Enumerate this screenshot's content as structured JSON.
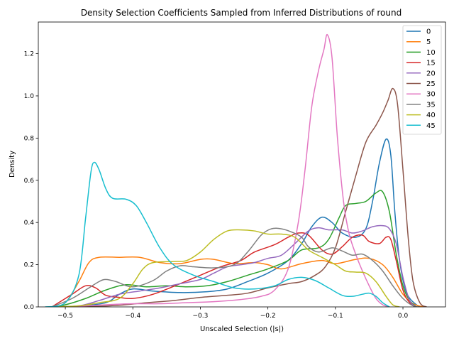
{
  "chart_data": {
    "type": "line",
    "title": "Density Selection Coefficients Sampled from Inferred Distributions of round",
    "xlabel": "Unscaled Selection (|s|)",
    "ylabel": "Density",
    "xlim": [
      -0.54,
      0.063
    ],
    "ylim": [
      0,
      1.35
    ],
    "xticks": [
      -0.5,
      -0.4,
      -0.3,
      -0.2,
      -0.1,
      0.0
    ],
    "xtick_labels": [
      "−0.5",
      "−0.4",
      "−0.3",
      "−0.2",
      "−0.1",
      "0.0"
    ],
    "yticks": [
      0.0,
      0.2,
      0.4,
      0.6,
      0.8,
      1.0,
      1.2
    ],
    "ytick_labels": [
      "0.0",
      "0.2",
      "0.4",
      "0.6",
      "0.8",
      "1.0",
      "1.2"
    ],
    "grid": false,
    "legend_position": "top-right",
    "series": [
      {
        "name": "0",
        "color": "#1f77b4",
        "points": [
          [
            -0.52,
            0
          ],
          [
            -0.48,
            0.004
          ],
          [
            -0.44,
            0.02
          ],
          [
            -0.42,
            0.06
          ],
          [
            -0.4,
            0.085
          ],
          [
            -0.37,
            0.075
          ],
          [
            -0.33,
            0.068
          ],
          [
            -0.29,
            0.072
          ],
          [
            -0.26,
            0.085
          ],
          [
            -0.23,
            0.12
          ],
          [
            -0.2,
            0.16
          ],
          [
            -0.17,
            0.22
          ],
          [
            -0.15,
            0.3
          ],
          [
            -0.135,
            0.38
          ],
          [
            -0.12,
            0.425
          ],
          [
            -0.105,
            0.4
          ],
          [
            -0.09,
            0.35
          ],
          [
            -0.07,
            0.33
          ],
          [
            -0.055,
            0.37
          ],
          [
            -0.045,
            0.5
          ],
          [
            -0.035,
            0.68
          ],
          [
            -0.025,
            0.795
          ],
          [
            -0.018,
            0.72
          ],
          [
            -0.012,
            0.45
          ],
          [
            -0.005,
            0.22
          ],
          [
            0.005,
            0.07
          ],
          [
            0.02,
            0.01
          ],
          [
            0.03,
            0
          ]
        ]
      },
      {
        "name": "5",
        "color": "#ff7f0e",
        "points": [
          [
            -0.52,
            0
          ],
          [
            -0.5,
            0.02
          ],
          [
            -0.48,
            0.12
          ],
          [
            -0.465,
            0.21
          ],
          [
            -0.45,
            0.235
          ],
          [
            -0.42,
            0.235
          ],
          [
            -0.39,
            0.235
          ],
          [
            -0.36,
            0.21
          ],
          [
            -0.33,
            0.205
          ],
          [
            -0.3,
            0.225
          ],
          [
            -0.28,
            0.225
          ],
          [
            -0.25,
            0.205
          ],
          [
            -0.22,
            0.21
          ],
          [
            -0.2,
            0.2
          ],
          [
            -0.18,
            0.18
          ],
          [
            -0.15,
            0.205
          ],
          [
            -0.12,
            0.22
          ],
          [
            -0.1,
            0.205
          ],
          [
            -0.07,
            0.225
          ],
          [
            -0.05,
            0.23
          ],
          [
            -0.03,
            0.2
          ],
          [
            -0.015,
            0.14
          ],
          [
            0.0,
            0.06
          ],
          [
            0.015,
            0.015
          ],
          [
            0.03,
            0
          ]
        ]
      },
      {
        "name": "10",
        "color": "#2ca02c",
        "points": [
          [
            -0.52,
            0
          ],
          [
            -0.5,
            0.01
          ],
          [
            -0.47,
            0.04
          ],
          [
            -0.44,
            0.08
          ],
          [
            -0.41,
            0.105
          ],
          [
            -0.38,
            0.095
          ],
          [
            -0.35,
            0.1
          ],
          [
            -0.32,
            0.095
          ],
          [
            -0.29,
            0.1
          ],
          [
            -0.26,
            0.12
          ],
          [
            -0.23,
            0.15
          ],
          [
            -0.2,
            0.18
          ],
          [
            -0.17,
            0.22
          ],
          [
            -0.15,
            0.27
          ],
          [
            -0.125,
            0.28
          ],
          [
            -0.11,
            0.32
          ],
          [
            -0.095,
            0.42
          ],
          [
            -0.085,
            0.48
          ],
          [
            -0.07,
            0.49
          ],
          [
            -0.055,
            0.5
          ],
          [
            -0.04,
            0.54
          ],
          [
            -0.03,
            0.545
          ],
          [
            -0.02,
            0.45
          ],
          [
            -0.01,
            0.25
          ],
          [
            0.0,
            0.1
          ],
          [
            0.01,
            0.03
          ],
          [
            0.02,
            0
          ]
        ]
      },
      {
        "name": "15",
        "color": "#d62728",
        "points": [
          [
            -0.52,
            0
          ],
          [
            -0.49,
            0.06
          ],
          [
            -0.47,
            0.1
          ],
          [
            -0.455,
            0.09
          ],
          [
            -0.44,
            0.055
          ],
          [
            -0.42,
            0.045
          ],
          [
            -0.4,
            0.04
          ],
          [
            -0.37,
            0.06
          ],
          [
            -0.33,
            0.11
          ],
          [
            -0.3,
            0.15
          ],
          [
            -0.27,
            0.19
          ],
          [
            -0.24,
            0.22
          ],
          [
            -0.22,
            0.26
          ],
          [
            -0.19,
            0.295
          ],
          [
            -0.17,
            0.33
          ],
          [
            -0.155,
            0.35
          ],
          [
            -0.14,
            0.34
          ],
          [
            -0.12,
            0.27
          ],
          [
            -0.105,
            0.25
          ],
          [
            -0.09,
            0.285
          ],
          [
            -0.075,
            0.33
          ],
          [
            -0.06,
            0.34
          ],
          [
            -0.05,
            0.31
          ],
          [
            -0.035,
            0.3
          ],
          [
            -0.025,
            0.33
          ],
          [
            -0.018,
            0.32
          ],
          [
            -0.01,
            0.22
          ],
          [
            0.0,
            0.08
          ],
          [
            0.01,
            0.02
          ],
          [
            0.02,
            0
          ]
        ]
      },
      {
        "name": "20",
        "color": "#9467bd",
        "points": [
          [
            -0.52,
            0
          ],
          [
            -0.48,
            0.005
          ],
          [
            -0.45,
            0.03
          ],
          [
            -0.42,
            0.06
          ],
          [
            -0.39,
            0.075
          ],
          [
            -0.36,
            0.09
          ],
          [
            -0.33,
            0.11
          ],
          [
            -0.3,
            0.13
          ],
          [
            -0.28,
            0.16
          ],
          [
            -0.26,
            0.19
          ],
          [
            -0.24,
            0.2
          ],
          [
            -0.22,
            0.21
          ],
          [
            -0.2,
            0.23
          ],
          [
            -0.18,
            0.245
          ],
          [
            -0.16,
            0.3
          ],
          [
            -0.14,
            0.36
          ],
          [
            -0.125,
            0.375
          ],
          [
            -0.11,
            0.365
          ],
          [
            -0.09,
            0.365
          ],
          [
            -0.075,
            0.35
          ],
          [
            -0.06,
            0.36
          ],
          [
            -0.045,
            0.38
          ],
          [
            -0.03,
            0.385
          ],
          [
            -0.02,
            0.37
          ],
          [
            -0.01,
            0.3
          ],
          [
            0.0,
            0.14
          ],
          [
            0.01,
            0.03
          ],
          [
            0.02,
            0
          ]
        ]
      },
      {
        "name": "25",
        "color": "#8c564b",
        "points": [
          [
            -0.52,
            0
          ],
          [
            -0.46,
            0.002
          ],
          [
            -0.42,
            0.008
          ],
          [
            -0.38,
            0.02
          ],
          [
            -0.34,
            0.03
          ],
          [
            -0.3,
            0.045
          ],
          [
            -0.26,
            0.055
          ],
          [
            -0.23,
            0.065
          ],
          [
            -0.2,
            0.09
          ],
          [
            -0.17,
            0.11
          ],
          [
            -0.15,
            0.12
          ],
          [
            -0.13,
            0.15
          ],
          [
            -0.115,
            0.19
          ],
          [
            -0.1,
            0.28
          ],
          [
            -0.085,
            0.45
          ],
          [
            -0.07,
            0.62
          ],
          [
            -0.055,
            0.78
          ],
          [
            -0.04,
            0.86
          ],
          [
            -0.03,
            0.92
          ],
          [
            -0.022,
            0.98
          ],
          [
            -0.015,
            1.035
          ],
          [
            -0.008,
            0.96
          ],
          [
            0.0,
            0.65
          ],
          [
            0.008,
            0.32
          ],
          [
            0.015,
            0.12
          ],
          [
            0.025,
            0.02
          ],
          [
            0.035,
            0
          ]
        ]
      },
      {
        "name": "30",
        "color": "#e377c2",
        "points": [
          [
            -0.52,
            0
          ],
          [
            -0.48,
            0.003
          ],
          [
            -0.44,
            0.01
          ],
          [
            -0.4,
            0.015
          ],
          [
            -0.36,
            0.015
          ],
          [
            -0.32,
            0.02
          ],
          [
            -0.28,
            0.025
          ],
          [
            -0.24,
            0.035
          ],
          [
            -0.21,
            0.05
          ],
          [
            -0.19,
            0.08
          ],
          [
            -0.17,
            0.18
          ],
          [
            -0.155,
            0.4
          ],
          [
            -0.145,
            0.65
          ],
          [
            -0.135,
            0.95
          ],
          [
            -0.125,
            1.12
          ],
          [
            -0.117,
            1.22
          ],
          [
            -0.112,
            1.29
          ],
          [
            -0.105,
            1.18
          ],
          [
            -0.097,
            0.8
          ],
          [
            -0.088,
            0.5
          ],
          [
            -0.08,
            0.35
          ],
          [
            -0.07,
            0.25
          ],
          [
            -0.06,
            0.17
          ],
          [
            -0.05,
            0.1
          ],
          [
            -0.04,
            0.04
          ],
          [
            -0.03,
            0.01
          ],
          [
            -0.02,
            0
          ]
        ]
      },
      {
        "name": "35",
        "color": "#7f7f7f",
        "points": [
          [
            -0.52,
            0
          ],
          [
            -0.49,
            0.04
          ],
          [
            -0.465,
            0.09
          ],
          [
            -0.45,
            0.12
          ],
          [
            -0.44,
            0.13
          ],
          [
            -0.425,
            0.12
          ],
          [
            -0.4,
            0.095
          ],
          [
            -0.37,
            0.125
          ],
          [
            -0.35,
            0.17
          ],
          [
            -0.33,
            0.195
          ],
          [
            -0.31,
            0.19
          ],
          [
            -0.28,
            0.185
          ],
          [
            -0.25,
            0.2
          ],
          [
            -0.23,
            0.26
          ],
          [
            -0.21,
            0.34
          ],
          [
            -0.195,
            0.37
          ],
          [
            -0.18,
            0.37
          ],
          [
            -0.165,
            0.355
          ],
          [
            -0.15,
            0.33
          ],
          [
            -0.14,
            0.285
          ],
          [
            -0.125,
            0.26
          ],
          [
            -0.105,
            0.28
          ],
          [
            -0.09,
            0.265
          ],
          [
            -0.075,
            0.245
          ],
          [
            -0.06,
            0.25
          ],
          [
            -0.045,
            0.22
          ],
          [
            -0.03,
            0.17
          ],
          [
            -0.015,
            0.1
          ],
          [
            0.0,
            0.04
          ],
          [
            0.015,
            0.005
          ],
          [
            0.025,
            0
          ]
        ]
      },
      {
        "name": "40",
        "color": "#bcbd22",
        "points": [
          [
            -0.52,
            0
          ],
          [
            -0.48,
            0.005
          ],
          [
            -0.45,
            0.02
          ],
          [
            -0.42,
            0.04
          ],
          [
            -0.4,
            0.11
          ],
          [
            -0.385,
            0.18
          ],
          [
            -0.37,
            0.21
          ],
          [
            -0.34,
            0.215
          ],
          [
            -0.32,
            0.22
          ],
          [
            -0.3,
            0.26
          ],
          [
            -0.28,
            0.32
          ],
          [
            -0.26,
            0.36
          ],
          [
            -0.24,
            0.365
          ],
          [
            -0.22,
            0.36
          ],
          [
            -0.2,
            0.345
          ],
          [
            -0.18,
            0.345
          ],
          [
            -0.16,
            0.33
          ],
          [
            -0.14,
            0.27
          ],
          [
            -0.12,
            0.235
          ],
          [
            -0.1,
            0.2
          ],
          [
            -0.085,
            0.17
          ],
          [
            -0.07,
            0.165
          ],
          [
            -0.055,
            0.16
          ],
          [
            -0.04,
            0.12
          ],
          [
            -0.025,
            0.05
          ],
          [
            -0.015,
            0.01
          ],
          [
            -0.005,
            0
          ]
        ]
      },
      {
        "name": "45",
        "color": "#17becf",
        "points": [
          [
            -0.53,
            0
          ],
          [
            -0.5,
            0.02
          ],
          [
            -0.48,
            0.15
          ],
          [
            -0.47,
            0.42
          ],
          [
            -0.462,
            0.64
          ],
          [
            -0.457,
            0.685
          ],
          [
            -0.45,
            0.65
          ],
          [
            -0.44,
            0.56
          ],
          [
            -0.43,
            0.515
          ],
          [
            -0.41,
            0.51
          ],
          [
            -0.395,
            0.48
          ],
          [
            -0.38,
            0.4
          ],
          [
            -0.36,
            0.28
          ],
          [
            -0.34,
            0.2
          ],
          [
            -0.31,
            0.15
          ],
          [
            -0.28,
            0.12
          ],
          [
            -0.25,
            0.09
          ],
          [
            -0.22,
            0.085
          ],
          [
            -0.19,
            0.1
          ],
          [
            -0.17,
            0.13
          ],
          [
            -0.15,
            0.14
          ],
          [
            -0.13,
            0.125
          ],
          [
            -0.11,
            0.09
          ],
          [
            -0.09,
            0.055
          ],
          [
            -0.075,
            0.05
          ],
          [
            -0.06,
            0.06
          ],
          [
            -0.05,
            0.065
          ],
          [
            -0.04,
            0.05
          ],
          [
            -0.03,
            0.02
          ],
          [
            -0.02,
            0
          ]
        ]
      }
    ]
  }
}
